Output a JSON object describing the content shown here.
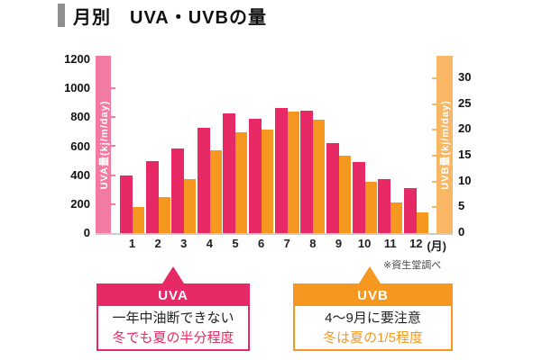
{
  "title": {
    "text": "月別　UVA・UVBの量"
  },
  "note": "※資生堂調べ",
  "chart_data": {
    "type": "bar",
    "categories": [
      "1",
      "2",
      "3",
      "4",
      "5",
      "6",
      "7",
      "8",
      "9",
      "10",
      "11",
      "12"
    ],
    "x_suffix": "(月)",
    "series": [
      {
        "name": "UVA",
        "axis": "left",
        "color": "#e72a66",
        "values": [
          400,
          500,
          585,
          730,
          825,
          790,
          865,
          845,
          620,
          490,
          375,
          310
        ]
      },
      {
        "name": "UVB",
        "axis": "right",
        "color": "#f6981f",
        "values": [
          5,
          7,
          10.5,
          16,
          19.5,
          20,
          23.5,
          22,
          15,
          10,
          6,
          4
        ]
      }
    ],
    "left_axis": {
      "label": "UVA量(kj/m/day)",
      "ticks": [
        0,
        200,
        400,
        600,
        800,
        1000,
        1200
      ],
      "range": [
        0,
        1200
      ]
    },
    "right_axis": {
      "label": "UVB量(kj/m/day)",
      "ticks": [
        0,
        5,
        10,
        15,
        20,
        25,
        30
      ],
      "range": [
        0,
        30
      ]
    },
    "grid": false,
    "legend_position": "none"
  },
  "callouts": {
    "uva": {
      "header": "UVA",
      "line1": "一年中油断できない",
      "line2": "冬でも夏の半分程度",
      "accent": "#e72a66"
    },
    "uvb": {
      "header": "UVB",
      "line1": "4〜9月に要注意",
      "line2": "冬は夏の1/5程度",
      "accent": "#f6981f"
    }
  },
  "colors": {
    "uva_bar": "#e72a66",
    "uvb_bar": "#f6981f",
    "uva_axis_column": "#f37ba1",
    "uvb_axis_column": "#f8b765",
    "baseline": "#cccccc",
    "title_marker": "#8f8f8f"
  }
}
